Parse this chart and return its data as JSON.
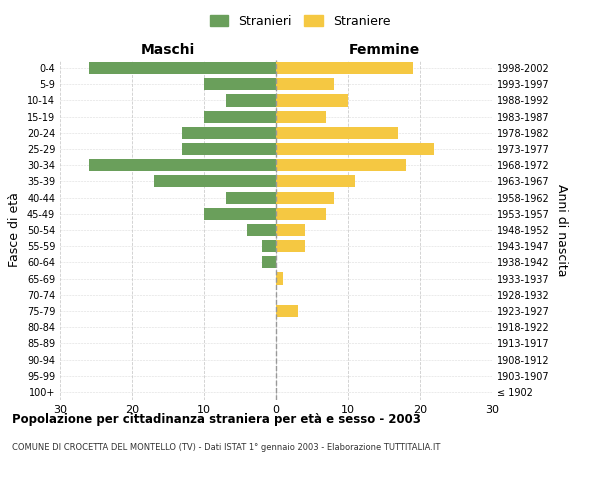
{
  "age_groups": [
    "100+",
    "95-99",
    "90-94",
    "85-89",
    "80-84",
    "75-79",
    "70-74",
    "65-69",
    "60-64",
    "55-59",
    "50-54",
    "45-49",
    "40-44",
    "35-39",
    "30-34",
    "25-29",
    "20-24",
    "15-19",
    "10-14",
    "5-9",
    "0-4"
  ],
  "birth_years": [
    "≤ 1902",
    "1903-1907",
    "1908-1912",
    "1913-1917",
    "1918-1922",
    "1923-1927",
    "1928-1932",
    "1933-1937",
    "1938-1942",
    "1943-1947",
    "1948-1952",
    "1953-1957",
    "1958-1962",
    "1963-1967",
    "1968-1972",
    "1973-1977",
    "1978-1982",
    "1983-1987",
    "1988-1992",
    "1993-1997",
    "1998-2002"
  ],
  "maschi": [
    0,
    0,
    0,
    0,
    0,
    0,
    0,
    0,
    2,
    2,
    4,
    10,
    7,
    17,
    26,
    13,
    13,
    10,
    7,
    10,
    26
  ],
  "femmine": [
    0,
    0,
    0,
    0,
    0,
    3,
    0,
    1,
    0,
    4,
    4,
    7,
    8,
    11,
    18,
    22,
    17,
    7,
    10,
    8,
    19
  ],
  "color_maschi": "#6a9f5b",
  "color_femmine": "#f5c842",
  "xlim": 30,
  "title": "Popolazione per cittadinanza straniera per età e sesso - 2003",
  "subtitle": "COMUNE DI CROCETTA DEL MONTELLO (TV) - Dati ISTAT 1° gennaio 2003 - Elaborazione TUTTITALIA.IT",
  "ylabel_left": "Fasce di età",
  "ylabel_right": "Anni di nascita",
  "label_maschi": "Stranieri",
  "label_femmine": "Straniere",
  "header_left": "Maschi",
  "header_right": "Femmine",
  "bg_color": "#ffffff",
  "grid_color": "#cccccc"
}
